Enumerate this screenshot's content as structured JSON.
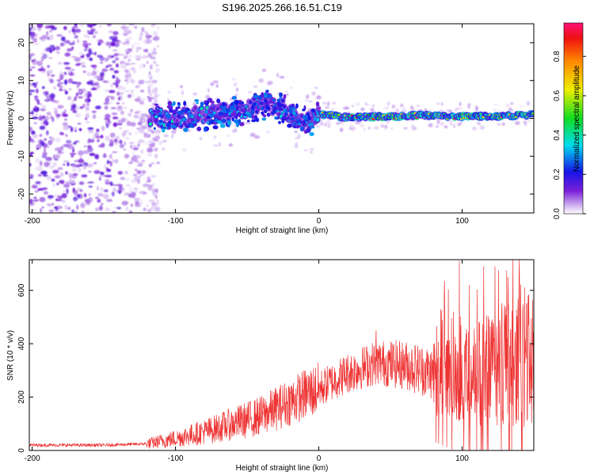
{
  "title": "S196.2025.266.16.51.C19",
  "chart_data": [
    {
      "type": "heatmap",
      "name": "spectrogram",
      "xlabel": "Height of straight line (km)",
      "ylabel": "Frequency (Hz)",
      "xlim": [
        -202,
        150
      ],
      "ylim": [
        -25,
        25
      ],
      "xticks": [
        -200,
        -100,
        0,
        100
      ],
      "yticks": [
        -20,
        -10,
        0,
        10,
        20
      ],
      "noise_region": [
        -202,
        -118
      ],
      "ridge": [
        {
          "x": -118,
          "f": 0.5
        },
        {
          "x": -100,
          "f": 0.0
        },
        {
          "x": -80,
          "f": 1.0
        },
        {
          "x": -60,
          "f": 1.5
        },
        {
          "x": -45,
          "f": 3.0
        },
        {
          "x": -35,
          "f": 4.0
        },
        {
          "x": -25,
          "f": 2.5
        },
        {
          "x": -15,
          "f": -0.5
        },
        {
          "x": -8,
          "f": -1.2
        },
        {
          "x": 0,
          "f": 1.5
        },
        {
          "x": 5,
          "f": 0.8
        },
        {
          "x": 20,
          "f": 0.3
        },
        {
          "x": 50,
          "f": 0.5
        },
        {
          "x": 70,
          "f": 0.8
        },
        {
          "x": 100,
          "f": 0.5
        },
        {
          "x": 130,
          "f": 0.6
        },
        {
          "x": 150,
          "f": 1.0
        }
      ],
      "colorbar": {
        "label": "Normalized spectral amplitude",
        "min": 0.0,
        "max": 0.97,
        "ticks": [
          0.0,
          0.2,
          0.4,
          0.6,
          0.8
        ],
        "tick_labels": [
          "0.0",
          "0.2",
          "0.4",
          "0.6",
          "0.8"
        ]
      }
    },
    {
      "type": "line",
      "name": "snr",
      "xlabel": "Height of straight line (km)",
      "ylabel": "SNR (10 * v/v)",
      "xlim": [
        -202,
        150
      ],
      "ylim": [
        0,
        715
      ],
      "xticks": [
        -200,
        -100,
        0,
        100
      ],
      "yticks": [
        0,
        200,
        400,
        600
      ],
      "color": "#ee3333",
      "trend": [
        {
          "x": -202,
          "y": 20
        },
        {
          "x": -150,
          "y": 20
        },
        {
          "x": -120,
          "y": 25
        },
        {
          "x": -100,
          "y": 45
        },
        {
          "x": -80,
          "y": 70
        },
        {
          "x": -60,
          "y": 100
        },
        {
          "x": -40,
          "y": 130
        },
        {
          "x": -25,
          "y": 170
        },
        {
          "x": -10,
          "y": 210
        },
        {
          "x": 0,
          "y": 230
        },
        {
          "x": 20,
          "y": 290
        },
        {
          "x": 40,
          "y": 330
        },
        {
          "x": 60,
          "y": 320
        },
        {
          "x": 80,
          "y": 290
        },
        {
          "x": 100,
          "y": 280
        },
        {
          "x": 120,
          "y": 300
        },
        {
          "x": 150,
          "y": 320
        }
      ],
      "peaks": [
        {
          "x": 98,
          "y": 710
        },
        {
          "x": 105,
          "y": 620
        },
        {
          "x": 115,
          "y": 690
        },
        {
          "x": 123,
          "y": 690
        },
        {
          "x": 132,
          "y": 650
        },
        {
          "x": 140,
          "y": 575
        },
        {
          "x": 146,
          "y": 580
        },
        {
          "x": 85,
          "y": 530
        },
        {
          "x": 40,
          "y": 450
        }
      ]
    }
  ]
}
